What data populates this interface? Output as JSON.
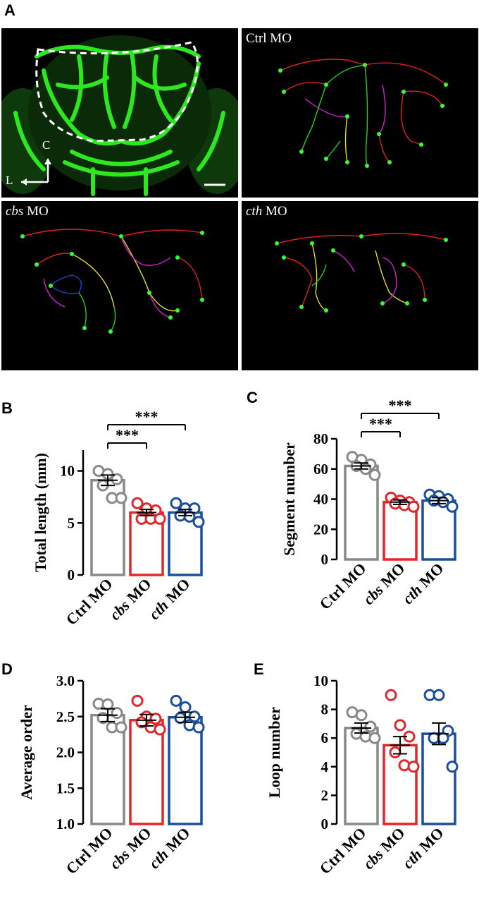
{
  "figure": {
    "panels": {
      "A": "A",
      "B": "B",
      "C": "C",
      "D": "D",
      "E": "E"
    },
    "images": {
      "ctrl_label": "Ctrl MO",
      "cbs_label_italic": "cbs",
      "cth_label_italic": "cth",
      "mo_suffix": " MO",
      "axis_c": "C",
      "axis_l": "L"
    }
  },
  "colors": {
    "ctrl": "#888888",
    "cbs": "#e3262b",
    "cth": "#1b4e9b",
    "vessel_green": "#39d32b"
  },
  "chart_data": [
    {
      "id": "B",
      "type": "bar",
      "ylabel": "Total length (mm)",
      "categories": [
        "Ctrl MO",
        "cbs MO",
        "cth MO"
      ],
      "category_italic": [
        "Ctrl",
        "cbs",
        "cth"
      ],
      "values": [
        9.1,
        6.0,
        6.0
      ],
      "sem": [
        0.5,
        0.3,
        0.3
      ],
      "points": [
        [
          10.0,
          9.7,
          9.2,
          8.6,
          7.4,
          7.4
        ],
        [
          6.9,
          6.4,
          6.2,
          5.4,
          5.4,
          5.4
        ],
        [
          6.9,
          6.4,
          6.4,
          5.7,
          5.6,
          5.1
        ]
      ],
      "ylim": [
        0,
        12
      ],
      "yticks": [
        0,
        5,
        10
      ],
      "ytick_labels": [
        "0",
        "5",
        "10"
      ],
      "significance": [
        {
          "from": 0,
          "to": 1,
          "label": "***"
        },
        {
          "from": 0,
          "to": 2,
          "label": "***"
        }
      ]
    },
    {
      "id": "C",
      "type": "bar",
      "ylabel": "Segment number",
      "categories": [
        "Ctrl MO",
        "cbs MO",
        "cth MO"
      ],
      "category_italic": [
        "Ctrl",
        "cbs",
        "cth"
      ],
      "values": [
        62,
        38,
        39
      ],
      "sem": [
        2,
        1.5,
        2
      ],
      "points": [
        [
          68,
          66,
          63,
          62,
          60,
          56
        ],
        [
          41,
          39,
          38,
          37,
          36,
          35
        ],
        [
          43,
          42,
          40,
          39,
          38,
          35
        ]
      ],
      "ylim": [
        0,
        80
      ],
      "yticks": [
        0,
        20,
        40,
        60,
        80
      ],
      "ytick_labels": [
        "0",
        "20",
        "40",
        "60",
        "80"
      ],
      "significance": [
        {
          "from": 0,
          "to": 1,
          "label": "***"
        },
        {
          "from": 0,
          "to": 2,
          "label": "***"
        }
      ]
    },
    {
      "id": "D",
      "type": "bar",
      "ylabel": "Average order",
      "categories": [
        "Ctrl MO",
        "cbs MO",
        "cth MO"
      ],
      "category_italic": [
        "Ctrl",
        "cbs",
        "cth"
      ],
      "values": [
        2.52,
        2.45,
        2.49
      ],
      "sem": [
        0.09,
        0.08,
        0.07
      ],
      "points": [
        [
          2.68,
          2.67,
          2.55,
          2.48,
          2.35,
          2.35
        ],
        [
          2.72,
          2.5,
          2.47,
          2.42,
          2.35,
          2.32
        ],
        [
          2.72,
          2.63,
          2.5,
          2.48,
          2.38,
          2.35
        ]
      ],
      "ylim": [
        1.0,
        3.0
      ],
      "yticks": [
        1.0,
        1.5,
        2.0,
        2.5,
        3.0
      ],
      "ytick_labels": [
        "1.0",
        "1.5",
        "2.0",
        "2.5",
        "3.0"
      ],
      "significance": []
    },
    {
      "id": "E",
      "type": "bar",
      "ylabel": "Loop number",
      "categories": [
        "Ctrl MO",
        "cbs MO",
        "cth MO"
      ],
      "category_italic": [
        "Ctrl",
        "cbs",
        "cth"
      ],
      "values": [
        6.7,
        5.5,
        6.3
      ],
      "sem": [
        0.35,
        0.6,
        0.75
      ],
      "points": [
        [
          7.8,
          7.6,
          6.8,
          6.3,
          6.1,
          6.0
        ],
        [
          9.0,
          6.9,
          6.1,
          5.0,
          4.1,
          4.0
        ],
        [
          9.0,
          9.0,
          6.5,
          6.0,
          6.0,
          4.0
        ]
      ],
      "ylim": [
        0,
        10
      ],
      "yticks": [
        0,
        2,
        4,
        6,
        8,
        10
      ],
      "ytick_labels": [
        "0",
        "2",
        "4",
        "6",
        "8",
        "10"
      ],
      "significance": []
    }
  ]
}
